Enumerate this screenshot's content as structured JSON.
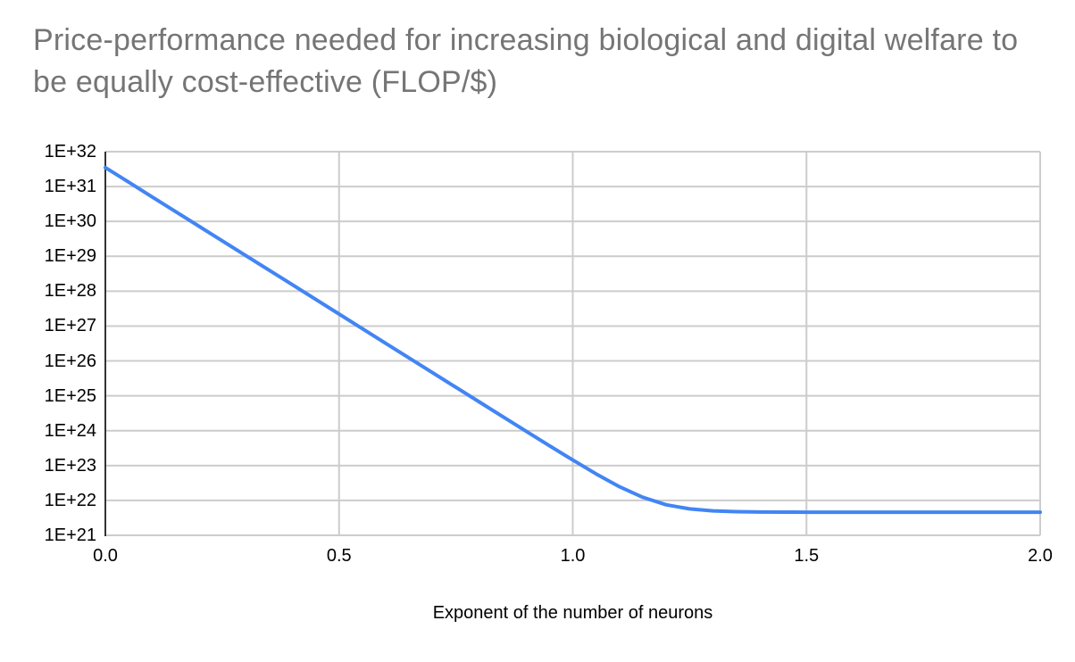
{
  "chart_data": {
    "type": "line",
    "title": "Price-performance needed for increasing biological and digital welfare to be equally cost-effective (FLOP/$)",
    "xlabel": "Exponent of the number of neurons",
    "ylabel": "",
    "y_scale": "log",
    "grid": true,
    "legend": "none",
    "xlim": [
      0.0,
      2.0
    ],
    "ylim": [
      1e+21,
      1e+32
    ],
    "x_tick_labels": [
      "0.0",
      "0.5",
      "1.0",
      "1.5",
      "2.0"
    ],
    "x_tick_values": [
      0.0,
      0.5,
      1.0,
      1.5,
      2.0
    ],
    "y_tick_labels": [
      "1E+21",
      "1E+22",
      "1E+23",
      "1E+24",
      "1E+25",
      "1E+26",
      "1E+27",
      "1E+28",
      "1E+29",
      "1E+30",
      "1E+31",
      "1E+32"
    ],
    "y_tick_exponents": [
      21,
      22,
      23,
      24,
      25,
      26,
      27,
      28,
      29,
      30,
      31,
      32
    ],
    "x": [
      0.0,
      0.05,
      0.1,
      0.15,
      0.2,
      0.25,
      0.3,
      0.35,
      0.4,
      0.45,
      0.5,
      0.55,
      0.6,
      0.65,
      0.7,
      0.75,
      0.8,
      0.85,
      0.9,
      0.95,
      1.0,
      1.05,
      1.1,
      1.15,
      1.2,
      1.25,
      1.3,
      1.35,
      1.4,
      1.45,
      1.5,
      1.55,
      1.6,
      1.65,
      1.7,
      1.75,
      1.8,
      1.85,
      1.9,
      1.95,
      2.0
    ],
    "y": [
      3.5e+31,
      1.33e+31,
      5.06e+30,
      1.92e+30,
      7.31e+29,
      2.78e+29,
      1.06e+29,
      4.02e+28,
      1.53e+28,
      5.81e+27,
      2.21e+27,
      8.4e+26,
      3.19e+26,
      1.21e+26,
      4.61e+25,
      1.75e+25,
      6.67e+24,
      2.54e+24,
      9.65e+23,
      3.71e+23,
      1.44e+23,
      5.76e+22,
      2.47e+22,
      1.23e+22,
      7.51e+21,
      5.71e+21,
      5.02e+21,
      4.76e+21,
      4.66e+21,
      4.62e+21,
      4.61e+21,
      4.6e+21,
      4.6e+21,
      4.6e+21,
      4.6e+21,
      4.6e+21,
      4.6e+21,
      4.6e+21,
      4.6e+21,
      4.6e+21,
      4.6e+21
    ],
    "line_color": "#4285f4",
    "gridline_color": "#cccccc",
    "axis_line_color": "#333333",
    "title_color": "#757575",
    "tick_label_color": "#000000"
  }
}
